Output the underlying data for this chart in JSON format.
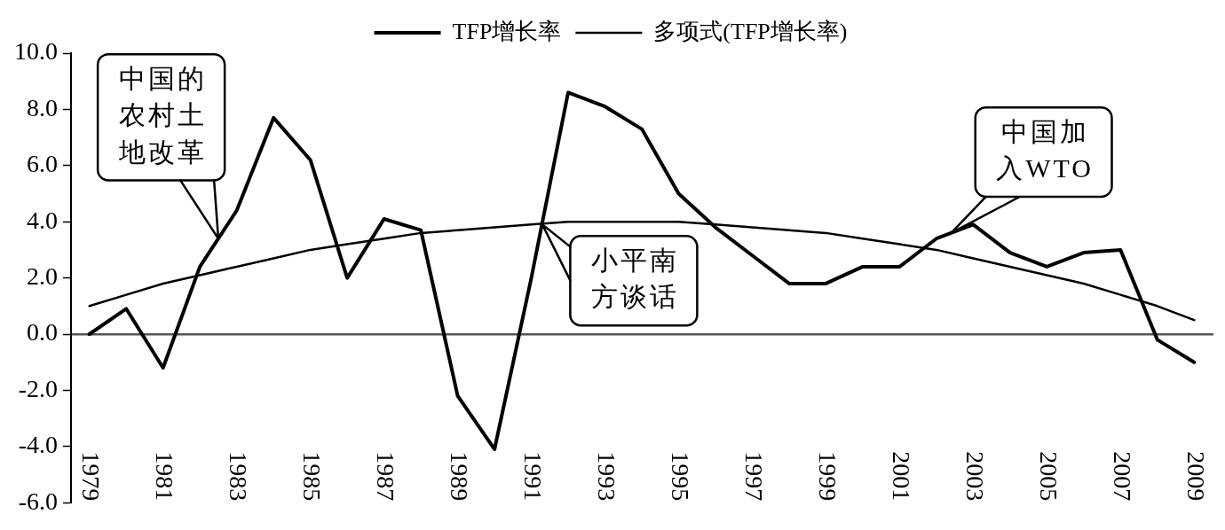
{
  "chart_data": {
    "type": "line",
    "x": [
      1979,
      1980,
      1981,
      1982,
      1983,
      1984,
      1985,
      1986,
      1987,
      1988,
      1989,
      1990,
      1991,
      1992,
      1993,
      1994,
      1995,
      1996,
      1997,
      1998,
      1999,
      2000,
      2001,
      2002,
      2003,
      2004,
      2005,
      2006,
      2007,
      2008,
      2009
    ],
    "series": [
      {
        "name": "TFP增长率",
        "color": "#000000",
        "values": [
          0.0,
          0.9,
          -1.2,
          2.4,
          4.4,
          7.7,
          6.2,
          2.0,
          4.1,
          3.7,
          -2.2,
          -4.1,
          2.0,
          8.6,
          8.1,
          7.3,
          5.0,
          3.8,
          2.8,
          1.8,
          1.8,
          2.4,
          2.4,
          3.4,
          3.9,
          2.9,
          2.4,
          2.9,
          3.0,
          -0.2,
          -1.0
        ]
      },
      {
        "name": "多项式(TFP增长率)",
        "color": "#000000",
        "values": [
          1.0,
          1.4,
          1.8,
          2.1,
          2.4,
          2.7,
          3.0,
          3.2,
          3.4,
          3.6,
          3.7,
          3.8,
          3.9,
          4.0,
          4.0,
          4.0,
          4.0,
          3.9,
          3.8,
          3.7,
          3.6,
          3.4,
          3.2,
          3.0,
          2.7,
          2.4,
          2.1,
          1.8,
          1.4,
          1.0,
          0.5
        ]
      }
    ],
    "xlim": [
      1978.5,
      2009.5
    ],
    "xticks": [
      1979,
      1981,
      1983,
      1985,
      1987,
      1989,
      1991,
      1993,
      1995,
      1997,
      1999,
      2001,
      2003,
      2005,
      2007,
      2009
    ],
    "ylim": [
      -6,
      10
    ],
    "yticks": [
      {
        "value": -6,
        "label": "-6.0"
      },
      {
        "value": -4,
        "label": "-4.0"
      },
      {
        "value": -2,
        "label": "-2.0"
      },
      {
        "value": 0,
        "label": "0.0"
      },
      {
        "value": 2,
        "label": "2.0"
      },
      {
        "value": 4,
        "label": "4.0"
      },
      {
        "value": 6,
        "label": "6.0"
      },
      {
        "value": 8,
        "label": "8.0"
      },
      {
        "value": 10,
        "label": "10.0"
      }
    ],
    "annotations": [
      {
        "text": "中国的农村土地改革",
        "x": 1982.5,
        "y": 3.4
      },
      {
        "text": "小平南方谈话",
        "x": 1991.3,
        "y": 3.9
      },
      {
        "text": "中国加入WTO",
        "x": 2002.4,
        "y": 3.6
      }
    ],
    "legend": "top"
  }
}
